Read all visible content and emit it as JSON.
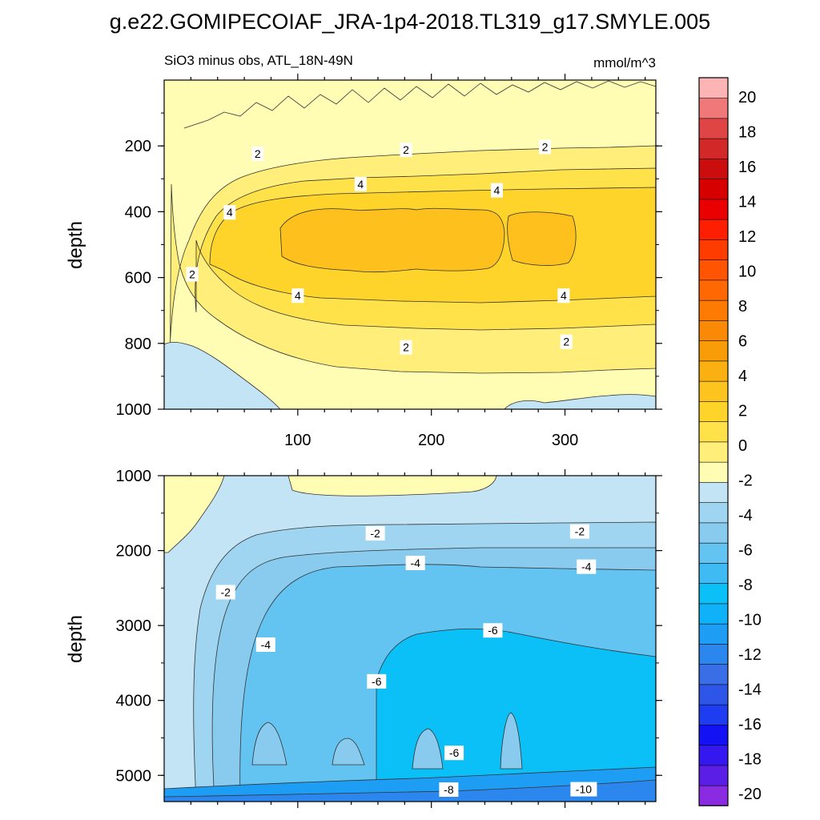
{
  "figure_title": "g.e22.GOMIPECOIAF_JRA-1p4-2018.TL319_g17.SMYLE.005",
  "chart_data": {
    "type": "contour",
    "title": "g.e22.GOMIPECOIAF_JRA-1p4-2018.TL319_g17.SMYLE.005",
    "subtitle_left": "SiO3 minus obs, ATL_18N-49N",
    "subtitle_right": "mmol/m^3",
    "units": "mmol/m^3",
    "xlim": [
      0,
      368
    ],
    "x_ticks": [
      100,
      200,
      300
    ],
    "x_tick_labels": [
      "100",
      "200",
      "300"
    ],
    "panels": [
      {
        "name": "upper",
        "ylabel": "depth",
        "ylim": [
          1000,
          0
        ],
        "y_ticks": [
          200,
          400,
          600,
          800,
          1000
        ],
        "y_tick_labels": [
          "200",
          "400",
          "600",
          "800",
          "1000"
        ],
        "contour_labels": [
          {
            "text": "2",
            "x": 70,
            "y": 224
          },
          {
            "text": "2",
            "x": 181,
            "y": 212
          },
          {
            "text": "2",
            "x": 285,
            "y": 203
          },
          {
            "text": "4",
            "x": 147,
            "y": 316
          },
          {
            "text": "4",
            "x": 249,
            "y": 335
          },
          {
            "text": "4",
            "x": 49,
            "y": 402
          },
          {
            "text": "2",
            "x": 21,
            "y": 590
          },
          {
            "text": "4",
            "x": 100,
            "y": 655
          },
          {
            "text": "4",
            "x": 299,
            "y": 655
          },
          {
            "text": "2",
            "x": 181,
            "y": 812
          },
          {
            "text": "2",
            "x": 301,
            "y": 795
          }
        ]
      },
      {
        "name": "lower",
        "ylabel": "depth",
        "ylim": [
          5350,
          1000
        ],
        "y_ticks": [
          1000,
          2000,
          3000,
          4000,
          5000
        ],
        "y_tick_labels": [
          "1000",
          "2000",
          "3000",
          "4000",
          "5000"
        ],
        "contour_labels": [
          {
            "text": "-2",
            "x": 158,
            "y": 1770
          },
          {
            "text": "-2",
            "x": 311,
            "y": 1745
          },
          {
            "text": "-4",
            "x": 188,
            "y": 2165
          },
          {
            "text": "-4",
            "x": 316,
            "y": 2215
          },
          {
            "text": "-2",
            "x": 46,
            "y": 2555
          },
          {
            "text": "-4",
            "x": 76,
            "y": 3255
          },
          {
            "text": "-6",
            "x": 246,
            "y": 3065
          },
          {
            "text": "-6",
            "x": 159,
            "y": 3745
          },
          {
            "text": "-6",
            "x": 217,
            "y": 4700
          },
          {
            "text": "-8",
            "x": 213,
            "y": 5190
          },
          {
            "text": "-10",
            "x": 314,
            "y": 5185
          }
        ]
      }
    ],
    "colorbar": {
      "levels": [
        -20,
        -18,
        -16,
        -14,
        -12,
        -10,
        -8,
        -6,
        -4,
        -2,
        0,
        2,
        4,
        6,
        8,
        10,
        12,
        14,
        16,
        18,
        20
      ],
      "labels": [
        "20",
        "18",
        "16",
        "14",
        "12",
        "10",
        "8",
        "6",
        "4",
        "2",
        "0",
        "-2",
        "-4",
        "-6",
        "-8",
        "-10",
        "-12",
        "-14",
        "-16",
        "-18",
        "-20"
      ],
      "colors_bottom_to_top": [
        "#8a2be2",
        "#5a1ee6",
        "#3418ef",
        "#1212f5",
        "#1e3cf0",
        "#2d55e8",
        "#3a6ee6",
        "#2b86ee",
        "#1e9df4",
        "#0fb2f8",
        "#0bc0f7",
        "#3fbaf2",
        "#63c4f2",
        "#88cbef",
        "#9fd5f0",
        "#c3e4f4",
        "#fffcb4",
        "#ffee7a",
        "#ffe24a",
        "#ffd42a",
        "#fdc420",
        "#fab010",
        "#f89c08",
        "#fa8a05",
        "#fd7a03",
        "#ff6802",
        "#ff5401",
        "#ff3c00",
        "#ff1e00",
        "#ea0000",
        "#d70000",
        "#cc0d0d",
        "#d22828",
        "#e04545",
        "#f07878",
        "#fcb4b4"
      ]
    },
    "colors": {
      "pos_low": "#fffcb4",
      "pos_mid": "#ffe24a",
      "pos_core": "#fdc01c",
      "neg_low": "#c3e4f4",
      "neg_mid": "#9fd5f0",
      "neg_core": "#0bc0f7",
      "neg_deep": "#1e9df4"
    }
  }
}
